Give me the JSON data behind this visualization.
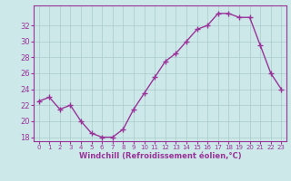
{
  "x": [
    0,
    1,
    2,
    3,
    4,
    5,
    6,
    7,
    8,
    9,
    10,
    11,
    12,
    13,
    14,
    15,
    16,
    17,
    18,
    19,
    20,
    21,
    22,
    23
  ],
  "y": [
    22.5,
    23.0,
    21.5,
    22.0,
    20.0,
    18.5,
    18.0,
    18.0,
    19.0,
    21.5,
    23.5,
    25.5,
    27.5,
    28.5,
    30.0,
    31.5,
    32.0,
    33.5,
    33.5,
    33.0,
    33.0,
    29.5,
    26.0,
    24.0
  ],
  "line_color": "#993399",
  "marker": "+",
  "marker_size": 4,
  "bg_color": "#cce8e8",
  "grid_color": "#aacccc",
  "xlabel": "Windchill (Refroidissement éolien,°C)",
  "xlabel_color": "#993399",
  "tick_color": "#993399",
  "ylim": [
    17.5,
    34.5
  ],
  "yticks": [
    18,
    20,
    22,
    24,
    26,
    28,
    30,
    32
  ],
  "xlim": [
    -0.5,
    23.5
  ],
  "xticks": [
    0,
    1,
    2,
    3,
    4,
    5,
    6,
    7,
    8,
    9,
    10,
    11,
    12,
    13,
    14,
    15,
    16,
    17,
    18,
    19,
    20,
    21,
    22,
    23
  ]
}
